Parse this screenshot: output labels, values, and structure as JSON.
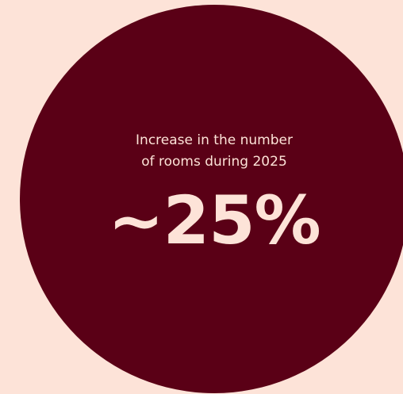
{
  "stat": {
    "caption_line1": "Increase in the number",
    "caption_line2": "of rooms during 2025",
    "value": "~25%"
  },
  "colors": {
    "background": "#fde3d8",
    "circle": "#5a0016",
    "text": "#fde3d8"
  }
}
